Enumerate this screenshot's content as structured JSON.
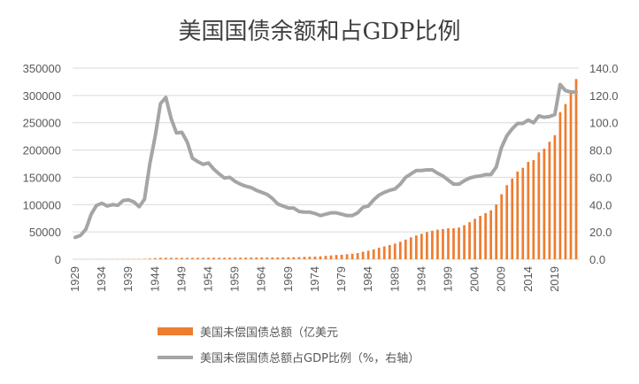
{
  "chart_data": {
    "type": "bar+line",
    "title": "美国国债余额和占GDP比例",
    "x": [
      1929,
      1930,
      1931,
      1932,
      1933,
      1934,
      1935,
      1936,
      1937,
      1938,
      1939,
      1940,
      1941,
      1942,
      1943,
      1944,
      1945,
      1946,
      1947,
      1948,
      1949,
      1950,
      1951,
      1952,
      1953,
      1954,
      1955,
      1956,
      1957,
      1958,
      1959,
      1960,
      1961,
      1962,
      1963,
      1964,
      1965,
      1966,
      1967,
      1968,
      1969,
      1970,
      1971,
      1972,
      1973,
      1974,
      1975,
      1976,
      1977,
      1978,
      1979,
      1980,
      1981,
      1982,
      1983,
      1984,
      1985,
      1986,
      1987,
      1988,
      1989,
      1990,
      1991,
      1992,
      1993,
      1994,
      1995,
      1996,
      1997,
      1998,
      1999,
      2000,
      2001,
      2002,
      2003,
      2004,
      2005,
      2006,
      2007,
      2008,
      2009,
      2010,
      2011,
      2012,
      2013,
      2014,
      2015,
      2016,
      2017,
      2018,
      2019,
      2020,
      2021,
      2022,
      2023
    ],
    "x_tick_labels": [
      "1929",
      "1934",
      "1939",
      "1944",
      "1949",
      "1954",
      "1959",
      "1964",
      "1969",
      "1974",
      "1979",
      "1984",
      "1989",
      "1994",
      "1999",
      "2004",
      "2009",
      "2014",
      "2019"
    ],
    "y_left": {
      "ylim": [
        0,
        350000
      ],
      "ticks": [
        "0",
        "50000",
        "100000",
        "150000",
        "200000",
        "250000",
        "300000",
        "350000"
      ]
    },
    "y_right": {
      "ylim": [
        0,
        140
      ],
      "ticks": [
        "0.0",
        "20.0",
        "40.0",
        "60.0",
        "80.0",
        "100.0",
        "120.0",
        "140.0"
      ]
    },
    "grid": true,
    "legend_position": "bottom",
    "series": [
      {
        "name": "美国未偿国债总额（亿美元",
        "kind": "bar",
        "axis": "left",
        "color": "#ed7d31",
        "values": [
          170,
          162,
          168,
          195,
          226,
          271,
          287,
          334,
          364,
          374,
          404,
          430,
          489,
          726,
          1368,
          2010,
          2590,
          2690,
          2580,
          2520,
          2530,
          2570,
          2550,
          2590,
          2660,
          2710,
          2740,
          2730,
          2720,
          2790,
          2870,
          2900,
          2930,
          3030,
          3100,
          3120,
          3170,
          3200,
          3260,
          3480,
          3540,
          3710,
          3980,
          4270,
          4580,
          4750,
          5330,
          6200,
          6990,
          7710,
          8270,
          9080,
          9950,
          11370,
          13720,
          15640,
          18170,
          21200,
          23460,
          26020,
          28680,
          32060,
          35990,
          40020,
          43510,
          46430,
          49740,
          52250,
          54130,
          55260,
          56560,
          56740,
          58070,
          62280,
          67830,
          74050,
          79330,
          84510,
          89500,
          100240,
          119100,
          135620,
          147900,
          160660,
          167380,
          178240,
          181510,
          195730,
          202450,
          215160,
          227190,
          269450,
          284290,
          309290,
          330000
        ]
      },
      {
        "name": "美国未偿国债总额占GDP比例（%，右轴）",
        "kind": "line",
        "axis": "right",
        "color": "#a5a5a5",
        "values": [
          16.0,
          17.5,
          22.0,
          33.0,
          39.5,
          41.0,
          39.0,
          40.0,
          39.5,
          43.0,
          43.5,
          42.0,
          38.5,
          44.0,
          70.0,
          90.0,
          114.0,
          118.5,
          103.0,
          92.5,
          93.0,
          86.0,
          74.0,
          71.5,
          69.5,
          70.5,
          66.0,
          62.5,
          59.5,
          60.0,
          57.0,
          55.0,
          53.5,
          52.5,
          50.5,
          49.0,
          47.5,
          44.5,
          40.5,
          39.0,
          37.5,
          37.5,
          35.0,
          34.5,
          34.5,
          33.5,
          32.0,
          33.0,
          34.0,
          34.0,
          33.0,
          32.0,
          32.0,
          34.0,
          38.0,
          39.0,
          43.5,
          47.0,
          49.0,
          50.5,
          51.5,
          55.0,
          60.0,
          62.5,
          65.0,
          65.0,
          65.5,
          65.5,
          63.0,
          61.0,
          58.0,
          55.0,
          55.0,
          57.5,
          59.5,
          60.5,
          61.0,
          62.0,
          62.0,
          67.5,
          82.0,
          90.5,
          95.5,
          99.5,
          99.5,
          102.0,
          100.0,
          105.0,
          104.0,
          104.5,
          106.0,
          128.0,
          123.5,
          122.5,
          122.5
        ]
      }
    ]
  }
}
